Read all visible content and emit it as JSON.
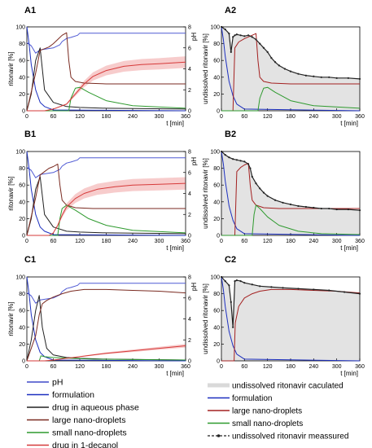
{
  "panels": [
    {
      "id": "A1",
      "label": "A1",
      "ylabel": "ritonavir [%]",
      "y2label": "pH"
    },
    {
      "id": "A2",
      "label": "A2",
      "ylabel": "undissolved ritonavir [%]"
    },
    {
      "id": "B1",
      "label": "B1",
      "ylabel": "ritonavir [%]",
      "y2label": "pH"
    },
    {
      "id": "B2",
      "label": "B2",
      "ylabel": "undissolved ritonavir [%]"
    },
    {
      "id": "C1",
      "label": "C1",
      "ylabel": "ritonavir [%]",
      "y2label": "pH"
    },
    {
      "id": "C2",
      "label": "C2",
      "ylabel": "undissolved ritonavir [%]"
    }
  ],
  "axes": {
    "xlabel": "t [min]",
    "xticks": [
      "0",
      "60",
      "120",
      "180",
      "240",
      "300",
      "360"
    ],
    "yticks": [
      "0",
      "20",
      "40",
      "60",
      "80",
      "100"
    ],
    "y2ticks": [
      "0",
      "2",
      "4",
      "6",
      "8"
    ]
  },
  "legend_left": [
    {
      "label": "pH",
      "color": "#3e48c8"
    },
    {
      "label": "formulation",
      "color": "#1c2fbf"
    },
    {
      "label": "drug in aqueous phase",
      "color": "#222222"
    },
    {
      "label": "large nano-droplets",
      "color": "#7a2a20"
    },
    {
      "label": "small nano-droplets",
      "color": "#2e9a2e"
    },
    {
      "label": "drug in 1-decanol",
      "color": "#d63a3a"
    }
  ],
  "legend_right": [
    {
      "label": "undissolved ritonavir caculated",
      "color": "#d9d9d9"
    },
    {
      "label": "formulation",
      "color": "#1c2fbf"
    },
    {
      "label": "large nano-droplets",
      "color": "#a32020"
    },
    {
      "label": "small nano-droplets",
      "color": "#2e9a2e"
    },
    {
      "label": "undissolved ritonavir meassured",
      "color": "#222222"
    }
  ],
  "chart_data": [
    {
      "panel": "A1",
      "type": "line",
      "xlim": [
        0,
        360
      ],
      "ylim": [
        0,
        100
      ],
      "y2lim": [
        0,
        8
      ],
      "series": [
        {
          "name": "pH",
          "axis": "y2",
          "x": [
            0,
            10,
            20,
            30,
            45,
            60,
            75,
            80,
            90,
            100,
            115,
            120,
            130,
            360
          ],
          "values": [
            6.5,
            6.2,
            5.5,
            5.8,
            5.9,
            6.0,
            6.3,
            6.6,
            6.9,
            7.0,
            7.2,
            7.4,
            7.4,
            7.4
          ]
        },
        {
          "name": "formulation",
          "x": [
            0,
            5,
            10,
            20,
            30,
            40,
            60,
            360
          ],
          "values": [
            100,
            80,
            55,
            25,
            10,
            5,
            1,
            0
          ]
        },
        {
          "name": "drug in aqueous phase",
          "x": [
            0,
            10,
            20,
            30,
            40,
            60,
            90,
            120,
            180,
            360
          ],
          "values": [
            0,
            20,
            60,
            75,
            25,
            10,
            5,
            4,
            3,
            2
          ]
        },
        {
          "name": "large nano-droplets",
          "x": [
            0,
            20,
            30,
            40,
            50,
            60,
            70,
            80,
            90,
            95,
            100,
            110,
            130,
            180,
            360
          ],
          "values": [
            0,
            45,
            72,
            74,
            76,
            80,
            85,
            90,
            93,
            60,
            40,
            35,
            33,
            32,
            32
          ]
        },
        {
          "name": "small nano-droplets",
          "x": [
            0,
            95,
            100,
            110,
            120,
            140,
            180,
            240,
            360
          ],
          "values": [
            0,
            0,
            15,
            27,
            28,
            22,
            12,
            6,
            3
          ]
        },
        {
          "name": "drug in 1-decanol",
          "x": [
            0,
            40,
            60,
            90,
            110,
            130,
            150,
            180,
            220,
            260,
            300,
            360
          ],
          "values": [
            0,
            0,
            2,
            8,
            20,
            32,
            41,
            48,
            53,
            55,
            56,
            58
          ]
        }
      ]
    },
    {
      "panel": "A2",
      "type": "line",
      "xlim": [
        0,
        360
      ],
      "ylim": [
        0,
        100
      ],
      "series": [
        {
          "name": "formulation",
          "x": [
            0,
            5,
            10,
            20,
            30,
            40,
            60,
            360
          ],
          "values": [
            100,
            85,
            65,
            35,
            18,
            8,
            2,
            0
          ]
        },
        {
          "name": "large nano-droplets",
          "x": [
            0,
            30,
            35,
            45,
            60,
            75,
            90,
            95,
            100,
            110,
            130,
            180,
            360
          ],
          "values": [
            0,
            0,
            75,
            82,
            86,
            89,
            92,
            60,
            40,
            35,
            33,
            32,
            32
          ]
        },
        {
          "name": "small nano-droplets",
          "x": [
            0,
            95,
            100,
            110,
            120,
            140,
            180,
            240,
            360
          ],
          "values": [
            0,
            0,
            15,
            27,
            28,
            22,
            12,
            6,
            3
          ]
        },
        {
          "name": "undissolved ritonavir meassured",
          "x": [
            0,
            10,
            20,
            25,
            30,
            35,
            40,
            50,
            60,
            70,
            80,
            90,
            100,
            110,
            120,
            130,
            140,
            150,
            165,
            180,
            200,
            220,
            240,
            260,
            280,
            300,
            330,
            360
          ],
          "values": [
            100,
            97,
            92,
            70,
            88,
            90,
            91,
            90,
            89,
            90,
            88,
            85,
            80,
            75,
            70,
            63,
            58,
            54,
            50,
            47,
            44,
            42,
            41,
            40,
            40,
            39,
            39,
            38
          ]
        }
      ]
    },
    {
      "panel": "B1",
      "type": "line",
      "xlim": [
        0,
        360
      ],
      "ylim": [
        0,
        100
      ],
      "y2lim": [
        0,
        8
      ],
      "series": [
        {
          "name": "pH",
          "axis": "y2",
          "x": [
            0,
            10,
            20,
            30,
            45,
            60,
            75,
            80,
            90,
            100,
            115,
            120,
            130,
            360
          ],
          "values": [
            6.5,
            6.2,
            5.5,
            5.8,
            5.9,
            6.0,
            6.3,
            6.6,
            6.9,
            7.0,
            7.2,
            7.4,
            7.4,
            7.4
          ]
        },
        {
          "name": "formulation",
          "x": [
            0,
            5,
            10,
            20,
            30,
            40,
            60,
            360
          ],
          "values": [
            100,
            80,
            55,
            25,
            10,
            5,
            1,
            0
          ]
        },
        {
          "name": "drug in aqueous phase",
          "x": [
            0,
            10,
            20,
            30,
            40,
            60,
            90,
            120,
            180,
            360
          ],
          "values": [
            0,
            20,
            55,
            70,
            25,
            10,
            5,
            4,
            3,
            2
          ]
        },
        {
          "name": "large nano-droplets",
          "x": [
            0,
            20,
            30,
            40,
            50,
            60,
            70,
            75,
            80,
            90,
            110,
            150,
            360
          ],
          "values": [
            0,
            45,
            72,
            76,
            80,
            82,
            85,
            60,
            42,
            36,
            33,
            32,
            32
          ]
        },
        {
          "name": "small nano-droplets",
          "x": [
            0,
            70,
            75,
            80,
            90,
            110,
            140,
            180,
            240,
            360
          ],
          "values": [
            0,
            0,
            20,
            32,
            36,
            30,
            20,
            12,
            6,
            3
          ]
        },
        {
          "name": "drug in 1-decanol",
          "x": [
            0,
            50,
            60,
            70,
            80,
            90,
            110,
            130,
            160,
            200,
            240,
            300,
            360
          ],
          "values": [
            0,
            0,
            3,
            12,
            24,
            34,
            44,
            50,
            55,
            58,
            60,
            61,
            62
          ]
        }
      ]
    },
    {
      "panel": "B2",
      "type": "line",
      "xlim": [
        0,
        360
      ],
      "ylim": [
        0,
        100
      ],
      "series": [
        {
          "name": "formulation",
          "x": [
            0,
            5,
            10,
            20,
            30,
            40,
            60,
            360
          ],
          "values": [
            100,
            85,
            65,
            35,
            18,
            8,
            2,
            0
          ]
        },
        {
          "name": "large nano-droplets",
          "x": [
            0,
            35,
            40,
            50,
            60,
            70,
            75,
            80,
            90,
            110,
            150,
            360
          ],
          "values": [
            0,
            0,
            76,
            81,
            84,
            86,
            60,
            42,
            36,
            33,
            32,
            32
          ]
        },
        {
          "name": "small nano-droplets",
          "x": [
            0,
            80,
            85,
            90,
            100,
            120,
            150,
            200,
            260,
            360
          ],
          "values": [
            0,
            0,
            25,
            36,
            32,
            22,
            12,
            5,
            2,
            1
          ]
        },
        {
          "name": "undissolved ritonavir meassured",
          "x": [
            0,
            10,
            20,
            30,
            40,
            50,
            60,
            70,
            75,
            80,
            90,
            100,
            110,
            120,
            140,
            160,
            180,
            200,
            220,
            240,
            260,
            280,
            300,
            330,
            360
          ],
          "values": [
            100,
            96,
            93,
            91,
            90,
            89,
            88,
            85,
            80,
            70,
            62,
            56,
            51,
            47,
            42,
            39,
            37,
            35,
            34,
            33,
            32,
            32,
            31,
            31,
            30
          ]
        }
      ]
    },
    {
      "panel": "C1",
      "type": "line",
      "xlim": [
        0,
        360
      ],
      "ylim": [
        0,
        100
      ],
      "y2lim": [
        0,
        8
      ],
      "series": [
        {
          "name": "pH",
          "axis": "y2",
          "x": [
            0,
            10,
            20,
            30,
            45,
            60,
            75,
            80,
            90,
            100,
            115,
            120,
            130,
            360
          ],
          "values": [
            6.5,
            6.2,
            5.5,
            5.8,
            5.9,
            6.0,
            6.3,
            6.6,
            6.9,
            7.0,
            7.2,
            7.4,
            7.4,
            7.4
          ]
        },
        {
          "name": "formulation",
          "x": [
            0,
            5,
            10,
            20,
            30,
            40,
            60,
            360
          ],
          "values": [
            100,
            80,
            55,
            25,
            10,
            5,
            1,
            0
          ]
        },
        {
          "name": "drug in aqueous phase",
          "x": [
            0,
            10,
            20,
            28,
            35,
            45,
            60,
            90,
            120,
            180,
            360
          ],
          "values": [
            0,
            25,
            60,
            78,
            40,
            15,
            7,
            4,
            3,
            2,
            1
          ]
        },
        {
          "name": "large nano-droplets",
          "x": [
            0,
            20,
            28,
            35,
            45,
            60,
            80,
            100,
            130,
            180,
            240,
            300,
            360
          ],
          "values": [
            0,
            30,
            55,
            68,
            72,
            76,
            80,
            83,
            85,
            85,
            84,
            83,
            81
          ]
        },
        {
          "name": "small nano-droplets",
          "x": [
            0,
            28,
            32,
            40,
            60,
            100,
            150,
            360
          ],
          "values": [
            0,
            0,
            6,
            5,
            4,
            3,
            2,
            1
          ]
        },
        {
          "name": "drug in 1-decanol",
          "x": [
            0,
            40,
            60,
            90,
            120,
            150,
            180,
            220,
            260,
            300,
            360
          ],
          "values": [
            0,
            0,
            1,
            3,
            5,
            7,
            9,
            11,
            13,
            15,
            18
          ]
        }
      ]
    },
    {
      "panel": "C2",
      "type": "line",
      "xlim": [
        0,
        360
      ],
      "ylim": [
        0,
        100
      ],
      "series": [
        {
          "name": "formulation",
          "x": [
            0,
            5,
            10,
            20,
            30,
            40,
            60,
            360
          ],
          "values": [
            100,
            85,
            65,
            35,
            18,
            8,
            2,
            0
          ]
        },
        {
          "name": "large nano-droplets",
          "x": [
            0,
            33,
            36,
            45,
            60,
            80,
            100,
            130,
            180,
            240,
            300,
            360
          ],
          "values": [
            0,
            0,
            45,
            65,
            75,
            80,
            83,
            85,
            85,
            84,
            83,
            81
          ]
        },
        {
          "name": "undissolved ritonavir meassured",
          "x": [
            0,
            10,
            20,
            25,
            30,
            35,
            40,
            50,
            60,
            80,
            100,
            130,
            160,
            200,
            240,
            280,
            320,
            360
          ],
          "values": [
            100,
            95,
            90,
            70,
            40,
            95,
            96,
            95,
            93,
            91,
            89,
            88,
            87,
            86,
            85,
            84,
            82,
            80
          ]
        }
      ]
    }
  ]
}
